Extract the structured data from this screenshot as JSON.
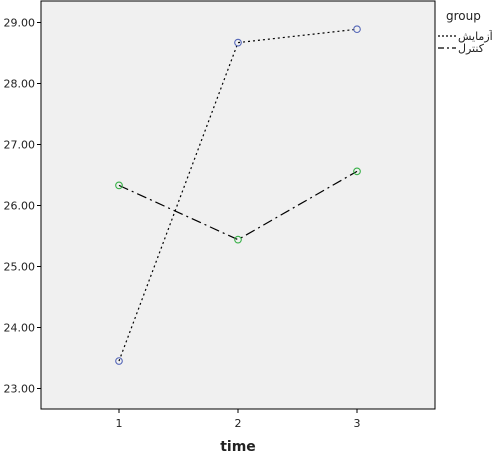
{
  "chart_data": {
    "type": "line",
    "title": "",
    "xlabel": "time",
    "ylabel": "",
    "x": [
      1,
      2,
      3
    ],
    "x_tick_labels": [
      "1",
      "2",
      "3"
    ],
    "ylim": [
      22.7,
      29.3
    ],
    "y_ticks": [
      23,
      24,
      25,
      26,
      27,
      28,
      29
    ],
    "y_tick_labels": [
      "23.00",
      "24.00",
      "25.00",
      "26.00",
      "27.00",
      "28.00",
      "29.00"
    ],
    "grid": false,
    "legend": {
      "title": "group",
      "placement": "top-right-outside"
    },
    "series": [
      {
        "name": "آزمایش",
        "values": [
          23.45,
          28.67,
          28.89
        ],
        "line_style": "dotted",
        "marker_color": "#5567b8"
      },
      {
        "name": "کنترل",
        "values": [
          26.33,
          25.44,
          26.56
        ],
        "line_style": "dash-dot",
        "marker_color": "#38b048"
      }
    ]
  }
}
